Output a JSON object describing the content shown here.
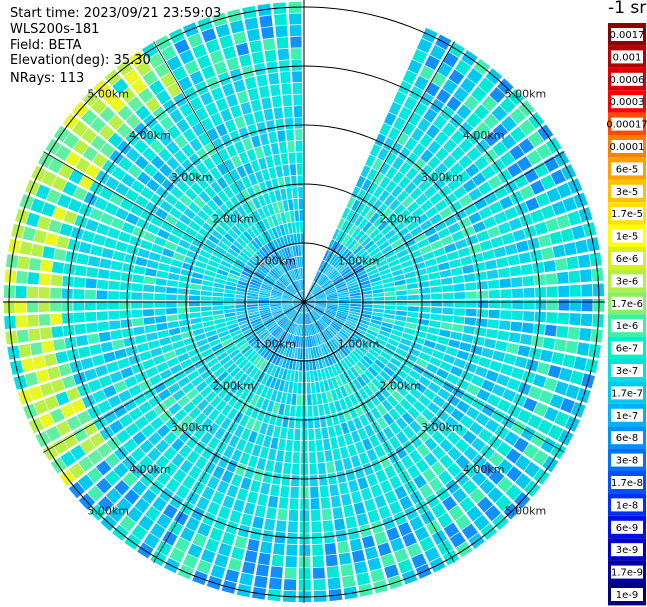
{
  "header": {
    "start_time": "Start time: 2023/09/21 23:59:03",
    "instrument": "WLS200s-181",
    "field": "Field: BETA",
    "elevation": "Elevation(deg): 35.30",
    "nrays": "NRays: 113"
  },
  "colorbar": {
    "unit_label": "-1 sr",
    "ticks": [
      "0.0017",
      "0.001",
      "0.0006",
      "0.0003",
      "0.00017",
      "0.0001",
      "6e-5",
      "3e-5",
      "1.7e-5",
      "1e-5",
      "6e-6",
      "3e-6",
      "1.7e-6",
      "1e-6",
      "6e-7",
      "3e-7",
      "1.7e-7",
      "1e-7",
      "6e-8",
      "3e-8",
      "1.7e-8",
      "1e-8",
      "6e-9",
      "3e-9",
      "1.7e-9",
      "1e-9"
    ],
    "colors": [
      "#8b0000",
      "#b30000",
      "#d90000",
      "#ff0000",
      "#ff4a00",
      "#ff8000",
      "#ffa000",
      "#ffc000",
      "#ffe000",
      "#ffff00",
      "#d8f020",
      "#b0f040",
      "#88f060",
      "#40f0a0",
      "#00f0c8",
      "#00e0e0",
      "#00c8f0",
      "#00b0ff",
      "#0090ff",
      "#0070ff",
      "#0050ff",
      "#0030ff",
      "#0010e8",
      "#0000c8",
      "#0000a0",
      "#000080"
    ]
  },
  "chart_data": {
    "type": "heatmap",
    "projection": "polar",
    "field": "BETA",
    "elevation_deg": 35.3,
    "n_rays": 113,
    "range_rings_km": [
      1,
      2,
      3,
      4,
      5
    ],
    "range_labels": [
      "1.00km",
      "2.00km",
      "3.00km",
      "4.00km",
      "5.00km"
    ],
    "max_range_km": 5.1,
    "missing_azimuth_deg": [
      0,
      24
    ],
    "grid": true
  }
}
